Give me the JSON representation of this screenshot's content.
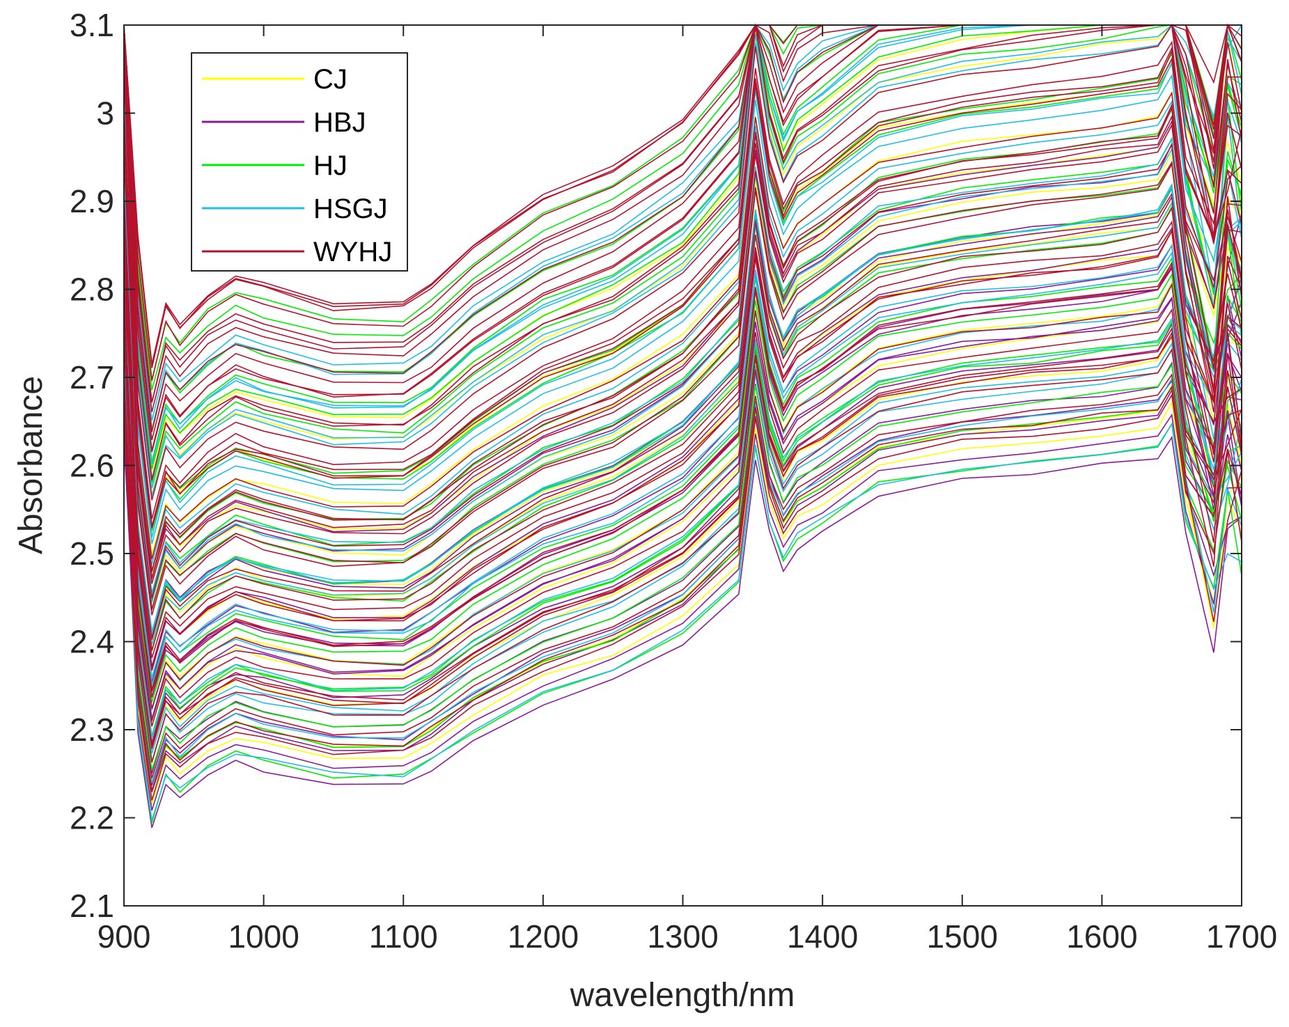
{
  "chart_data": {
    "type": "line",
    "title": "",
    "xlabel": "wavelength/nm",
    "ylabel": "Absorbance",
    "xlim": [
      900,
      1700
    ],
    "ylim": [
      2.1,
      3.1
    ],
    "xticks": [
      900,
      1000,
      1100,
      1200,
      1300,
      1400,
      1500,
      1600,
      1700
    ],
    "yticks": [
      2.1,
      2.2,
      2.3,
      2.4,
      2.5,
      2.6,
      2.7,
      2.8,
      2.9,
      3.0,
      3.1
    ],
    "xtick_labels": [
      "900",
      "1000",
      "1100",
      "1200",
      "1300",
      "1400",
      "1500",
      "1600",
      "1700"
    ],
    "ytick_labels": [
      "2.1",
      "2.2",
      "2.3",
      "2.4",
      "2.5",
      "2.6",
      "2.7",
      "2.8",
      "2.9",
      "3",
      "3.1"
    ],
    "grid": false,
    "legend_position": "top-left",
    "x": [
      900,
      910,
      920,
      930,
      940,
      960,
      980,
      1000,
      1050,
      1100,
      1120,
      1150,
      1200,
      1250,
      1300,
      1340,
      1352,
      1362,
      1372,
      1382,
      1400,
      1440,
      1500,
      1550,
      1600,
      1640,
      1650,
      1660,
      1680,
      1690,
      1700
    ],
    "series": [
      {
        "name": "CJ",
        "color": "#FFFF00",
        "count": 14,
        "offset_min": 2.21,
        "offset_max": 2.6
      },
      {
        "name": "HBJ",
        "color": "#8B1A9A",
        "count": 16,
        "offset_min": 2.19,
        "offset_max": 2.46
      },
      {
        "name": "HJ",
        "color": "#00EE00",
        "count": 20,
        "offset_min": 2.2,
        "offset_max": 2.7
      },
      {
        "name": "HSGJ",
        "color": "#1EBEE6",
        "count": 22,
        "offset_min": 2.21,
        "offset_max": 2.66
      },
      {
        "name": "WYHJ",
        "color": "#B5122E",
        "count": 42,
        "offset_min": 2.22,
        "offset_max": 2.73
      }
    ],
    "base_shape": [
      0.53,
      0.13,
      0.0,
      0.06,
      0.04,
      0.07,
      0.09,
      0.08,
      0.06,
      0.06,
      0.08,
      0.12,
      0.17,
      0.2,
      0.25,
      0.32,
      0.5,
      0.4,
      0.35,
      0.38,
      0.4,
      0.45,
      0.47,
      0.48,
      0.49,
      0.5,
      0.53,
      0.4,
      0.28,
      0.42,
      0.39
    ]
  }
}
